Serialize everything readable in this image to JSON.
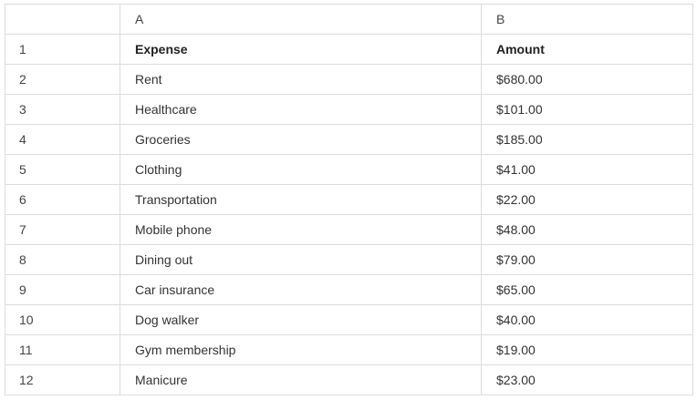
{
  "columns": [
    "A",
    "B"
  ],
  "header": {
    "row_number": "1",
    "expense_label": "Expense",
    "amount_label": "Amount"
  },
  "rows": [
    {
      "num": "2",
      "expense": "Rent",
      "amount": "$680.00"
    },
    {
      "num": "3",
      "expense": "Healthcare",
      "amount": "$101.00"
    },
    {
      "num": "4",
      "expense": "Groceries",
      "amount": "$185.00"
    },
    {
      "num": "5",
      "expense": "Clothing",
      "amount": "$41.00"
    },
    {
      "num": "6",
      "expense": "Transportation",
      "amount": "$22.00"
    },
    {
      "num": "7",
      "expense": "Mobile phone",
      "amount": "$48.00"
    },
    {
      "num": "8",
      "expense": "Dining out",
      "amount": "$79.00"
    },
    {
      "num": "9",
      "expense": "Car insurance",
      "amount": "$65.00"
    },
    {
      "num": "10",
      "expense": "Dog walker",
      "amount": "$40.00"
    },
    {
      "num": "11",
      "expense": "Gym membership",
      "amount": "$19.00"
    },
    {
      "num": "12",
      "expense": "Manicure",
      "amount": "$23.00"
    }
  ]
}
